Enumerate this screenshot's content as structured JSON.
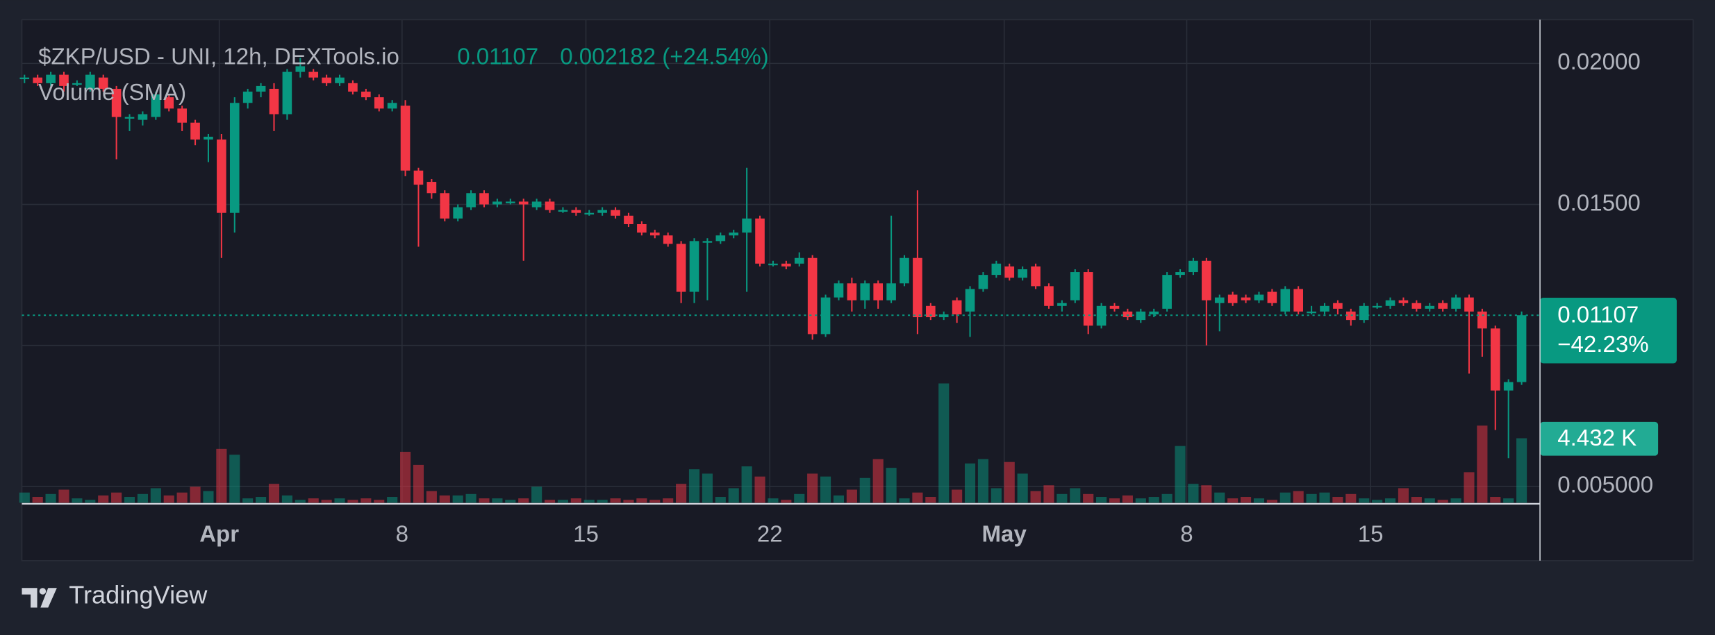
{
  "chart_data": {
    "type": "candlestick",
    "title": "$ZKP/USD - UNI, 12h, DEXTools.io",
    "last": 0.01107,
    "change": "0.002182 (+24.54%)",
    "indicator": "Volume (SMA)",
    "change_badge": "−42.23%",
    "volume_label": "4.432 K",
    "brand": "TradingView",
    "up_color": "#089981",
    "down_color": "#f23645",
    "ylim": [
      0.00442,
      0.02155
    ],
    "yticks": [
      {
        "value": 0.02,
        "label": "0.02000"
      },
      {
        "value": 0.015,
        "label": "0.01500"
      },
      {
        "value": 0.005,
        "label": "0.005000"
      }
    ],
    "ygrid": [
      0.02,
      0.015,
      0.01,
      0.005
    ],
    "xlim": [
      -0.2,
      115.4
    ],
    "xticks": [
      {
        "value": 14.83,
        "label": "Apr"
      },
      {
        "value": 28.75,
        "label": "8"
      },
      {
        "value": 42.75,
        "label": "15"
      },
      {
        "value": 56.75,
        "label": "22"
      },
      {
        "value": 74.6,
        "label": "May"
      },
      {
        "value": 88.5,
        "label": "8"
      },
      {
        "value": 102.5,
        "label": "15"
      }
    ],
    "volume_lim": [
      0,
      33200
    ],
    "ohlc": [
      [
        0.0195,
        0.0196,
        0.0193,
        0.0195
      ],
      [
        0.0195,
        0.0196,
        0.0192,
        0.0193
      ],
      [
        0.0193,
        0.0197,
        0.0192,
        0.0196
      ],
      [
        0.0196,
        0.0197,
        0.019,
        0.0192
      ],
      [
        0.0193,
        0.0194,
        0.0192,
        0.0193
      ],
      [
        0.0191,
        0.0197,
        0.019,
        0.0196
      ],
      [
        0.0195,
        0.0196,
        0.019,
        0.0191
      ],
      [
        0.0191,
        0.0192,
        0.0166,
        0.0181
      ],
      [
        0.0181,
        0.0182,
        0.0176,
        0.0181
      ],
      [
        0.018,
        0.0183,
        0.0178,
        0.0182
      ],
      [
        0.0181,
        0.019,
        0.018,
        0.0189
      ],
      [
        0.0188,
        0.0189,
        0.0183,
        0.0184
      ],
      [
        0.0184,
        0.0185,
        0.0176,
        0.0179
      ],
      [
        0.0179,
        0.018,
        0.0171,
        0.0173
      ],
      [
        0.0173,
        0.0175,
        0.0165,
        0.0174
      ],
      [
        0.0173,
        0.0175,
        0.0131,
        0.0147
      ],
      [
        0.0147,
        0.0188,
        0.014,
        0.0186
      ],
      [
        0.0186,
        0.0191,
        0.0184,
        0.019
      ],
      [
        0.019,
        0.0193,
        0.0188,
        0.0192
      ],
      [
        0.0191,
        0.0193,
        0.0176,
        0.0182
      ],
      [
        0.0182,
        0.0198,
        0.018,
        0.0197
      ],
      [
        0.0197,
        0.0202,
        0.0195,
        0.0199
      ],
      [
        0.0197,
        0.0198,
        0.0194,
        0.0195
      ],
      [
        0.0195,
        0.0196,
        0.0192,
        0.0193
      ],
      [
        0.0193,
        0.0196,
        0.0192,
        0.0195
      ],
      [
        0.0193,
        0.0194,
        0.0189,
        0.019
      ],
      [
        0.019,
        0.0191,
        0.0187,
        0.0188
      ],
      [
        0.0188,
        0.0189,
        0.0183,
        0.0184
      ],
      [
        0.0184,
        0.0187,
        0.0183,
        0.0186
      ],
      [
        0.0185,
        0.0187,
        0.016,
        0.0162
      ],
      [
        0.0162,
        0.0163,
        0.0135,
        0.0157
      ],
      [
        0.0158,
        0.0159,
        0.0152,
        0.0154
      ],
      [
        0.0154,
        0.0155,
        0.0144,
        0.0145
      ],
      [
        0.0145,
        0.015,
        0.0144,
        0.0149
      ],
      [
        0.0149,
        0.0155,
        0.0148,
        0.0154
      ],
      [
        0.0154,
        0.0155,
        0.0149,
        0.015
      ],
      [
        0.015,
        0.0152,
        0.0149,
        0.0151
      ],
      [
        0.0151,
        0.0152,
        0.015,
        0.0151
      ],
      [
        0.0151,
        0.0152,
        0.013,
        0.015
      ],
      [
        0.0149,
        0.0152,
        0.0148,
        0.0151
      ],
      [
        0.0151,
        0.0152,
        0.0147,
        0.0148
      ],
      [
        0.0148,
        0.0149,
        0.0147,
        0.0148
      ],
      [
        0.0148,
        0.0149,
        0.0146,
        0.0147
      ],
      [
        0.0147,
        0.0148,
        0.0146,
        0.0147
      ],
      [
        0.0147,
        0.0149,
        0.0146,
        0.0148
      ],
      [
        0.0148,
        0.0149,
        0.0145,
        0.0146
      ],
      [
        0.0146,
        0.0147,
        0.0142,
        0.0143
      ],
      [
        0.0143,
        0.0144,
        0.0139,
        0.014
      ],
      [
        0.014,
        0.0141,
        0.0138,
        0.0139
      ],
      [
        0.0139,
        0.014,
        0.0135,
        0.0136
      ],
      [
        0.0136,
        0.0137,
        0.0115,
        0.0119
      ],
      [
        0.0119,
        0.0138,
        0.0115,
        0.0137
      ],
      [
        0.0137,
        0.0138,
        0.0116,
        0.0137
      ],
      [
        0.0137,
        0.014,
        0.0136,
        0.0139
      ],
      [
        0.0139,
        0.0141,
        0.0138,
        0.014
      ],
      [
        0.014,
        0.0163,
        0.0119,
        0.0145
      ],
      [
        0.0145,
        0.0146,
        0.0128,
        0.0129
      ],
      [
        0.0129,
        0.013,
        0.0128,
        0.0129
      ],
      [
        0.0129,
        0.013,
        0.0127,
        0.0128
      ],
      [
        0.0129,
        0.0133,
        0.0128,
        0.0131
      ],
      [
        0.0131,
        0.0132,
        0.0102,
        0.0104
      ],
      [
        0.0104,
        0.0118,
        0.0103,
        0.0117
      ],
      [
        0.0117,
        0.0123,
        0.0116,
        0.0122
      ],
      [
        0.0122,
        0.0124,
        0.0112,
        0.0116
      ],
      [
        0.0116,
        0.0123,
        0.0113,
        0.0122
      ],
      [
        0.0122,
        0.0123,
        0.0113,
        0.0116
      ],
      [
        0.0116,
        0.0146,
        0.0115,
        0.0122
      ],
      [
        0.0122,
        0.0132,
        0.0121,
        0.0131
      ],
      [
        0.0131,
        0.0155,
        0.0104,
        0.011
      ],
      [
        0.0114,
        0.0115,
        0.0109,
        0.011
      ],
      [
        0.011,
        0.0112,
        0.0109,
        0.0111
      ],
      [
        0.0116,
        0.0117,
        0.0108,
        0.0111
      ],
      [
        0.0112,
        0.0121,
        0.0103,
        0.012
      ],
      [
        0.012,
        0.0126,
        0.0119,
        0.0125
      ],
      [
        0.0125,
        0.013,
        0.0124,
        0.0129
      ],
      [
        0.0128,
        0.0129,
        0.0123,
        0.0124
      ],
      [
        0.0124,
        0.0128,
        0.0123,
        0.0127
      ],
      [
        0.0128,
        0.0129,
        0.012,
        0.0121
      ],
      [
        0.0121,
        0.0122,
        0.0113,
        0.0114
      ],
      [
        0.0114,
        0.0116,
        0.0112,
        0.0115
      ],
      [
        0.0116,
        0.0127,
        0.0115,
        0.0126
      ],
      [
        0.0126,
        0.0127,
        0.0104,
        0.0107
      ],
      [
        0.0107,
        0.0115,
        0.0106,
        0.0114
      ],
      [
        0.0114,
        0.0115,
        0.0112,
        0.0113
      ],
      [
        0.0112,
        0.0113,
        0.0109,
        0.011
      ],
      [
        0.0109,
        0.0113,
        0.0108,
        0.0112
      ],
      [
        0.0111,
        0.0113,
        0.011,
        0.0112
      ],
      [
        0.0113,
        0.0126,
        0.0112,
        0.0125
      ],
      [
        0.0125,
        0.0127,
        0.0124,
        0.0126
      ],
      [
        0.0126,
        0.0131,
        0.0125,
        0.013
      ],
      [
        0.013,
        0.0131,
        0.01,
        0.0116
      ],
      [
        0.0115,
        0.0118,
        0.0105,
        0.0117
      ],
      [
        0.0118,
        0.0119,
        0.0114,
        0.0115
      ],
      [
        0.0117,
        0.0118,
        0.0115,
        0.0116
      ],
      [
        0.0116,
        0.0119,
        0.0115,
        0.0118
      ],
      [
        0.0119,
        0.012,
        0.0114,
        0.0115
      ],
      [
        0.0112,
        0.0121,
        0.0111,
        0.012
      ],
      [
        0.012,
        0.0121,
        0.0111,
        0.0112
      ],
      [
        0.0112,
        0.0114,
        0.0111,
        0.0112
      ],
      [
        0.0112,
        0.0115,
        0.0111,
        0.0114
      ],
      [
        0.0115,
        0.0116,
        0.0111,
        0.0113
      ],
      [
        0.0112,
        0.0113,
        0.0107,
        0.0109
      ],
      [
        0.0109,
        0.0115,
        0.0108,
        0.0114
      ],
      [
        0.0114,
        0.0115,
        0.0113,
        0.0114
      ],
      [
        0.0114,
        0.0117,
        0.0113,
        0.0116
      ],
      [
        0.0116,
        0.0117,
        0.0114,
        0.0115
      ],
      [
        0.0115,
        0.0116,
        0.0112,
        0.0113
      ],
      [
        0.0113,
        0.0115,
        0.0112,
        0.0114
      ],
      [
        0.0115,
        0.0116,
        0.0112,
        0.0113
      ],
      [
        0.0113,
        0.0118,
        0.0112,
        0.0117
      ],
      [
        0.0117,
        0.0118,
        0.009,
        0.0112
      ],
      [
        0.0112,
        0.0113,
        0.0096,
        0.0106
      ],
      [
        0.0106,
        0.0107,
        0.007,
        0.0084
      ],
      [
        0.0084,
        0.0088,
        0.006,
        0.0087
      ],
      [
        0.0087,
        0.0112,
        0.0086,
        0.01107
      ]
    ],
    "volume": [
      700,
      400,
      600,
      900,
      300,
      200,
      500,
      700,
      400,
      600,
      1000,
      500,
      700,
      1100,
      800,
      3700,
      3300,
      300,
      400,
      1300,
      500,
      200,
      300,
      200,
      300,
      200,
      300,
      200,
      400,
      3500,
      2600,
      800,
      500,
      500,
      600,
      300,
      300,
      200,
      300,
      1100,
      200,
      200,
      300,
      200,
      200,
      300,
      200,
      300,
      200,
      300,
      1300,
      2300,
      2000,
      400,
      1000,
      2500,
      1800,
      300,
      200,
      600,
      2000,
      1800,
      500,
      900,
      1700,
      3000,
      2400,
      300,
      700,
      400,
      8200,
      900,
      2700,
      3000,
      1000,
      2800,
      2000,
      800,
      1200,
      600,
      1000,
      600,
      400,
      300,
      500,
      300,
      400,
      600,
      3900,
      1300,
      1200,
      700,
      300,
      400,
      300,
      200,
      700,
      800,
      600,
      700,
      400,
      600,
      300,
      200,
      300,
      1000,
      400,
      300,
      200,
      300,
      2100,
      5300,
      400,
      300,
      4432
    ]
  }
}
